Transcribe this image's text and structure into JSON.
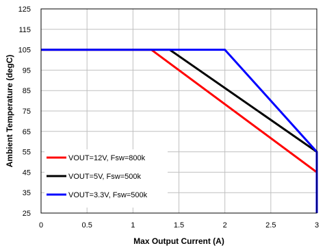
{
  "chart_data": {
    "type": "line",
    "title": "",
    "xlabel": "Max Output Current (A)",
    "ylabel": "Ambient Temperature (degC)",
    "xlim": [
      0,
      3
    ],
    "ylim": [
      25,
      125
    ],
    "xticks": [
      0,
      0.5,
      1,
      1.5,
      2,
      2.5,
      3
    ],
    "xtick_labels": [
      "0",
      "0.5",
      "1",
      "1.5",
      "2",
      "2.5",
      "3"
    ],
    "yticks": [
      25,
      35,
      45,
      55,
      65,
      75,
      85,
      95,
      105,
      115,
      125
    ],
    "ytick_labels": [
      "25",
      "35",
      "45",
      "55",
      "65",
      "75",
      "85",
      "95",
      "105",
      "115",
      "125"
    ],
    "grid": true,
    "legend_position": "bottom-left",
    "series": [
      {
        "name": "VOUT=12V, Fsw=800k",
        "color": "#ff0000",
        "points": [
          [
            0,
            105
          ],
          [
            1.2,
            105
          ],
          [
            3,
            45
          ],
          [
            3,
            25
          ]
        ]
      },
      {
        "name": "VOUT=5V, Fsw=500k",
        "color": "#000000",
        "points": [
          [
            0,
            105
          ],
          [
            1.4,
            105
          ],
          [
            3,
            55
          ],
          [
            3,
            25
          ]
        ]
      },
      {
        "name": "VOUT=3.3V, Fsw=500k",
        "color": "#0000ff",
        "points": [
          [
            0,
            105
          ],
          [
            2,
            105
          ],
          [
            3,
            55
          ],
          [
            3,
            25
          ]
        ]
      }
    ]
  }
}
